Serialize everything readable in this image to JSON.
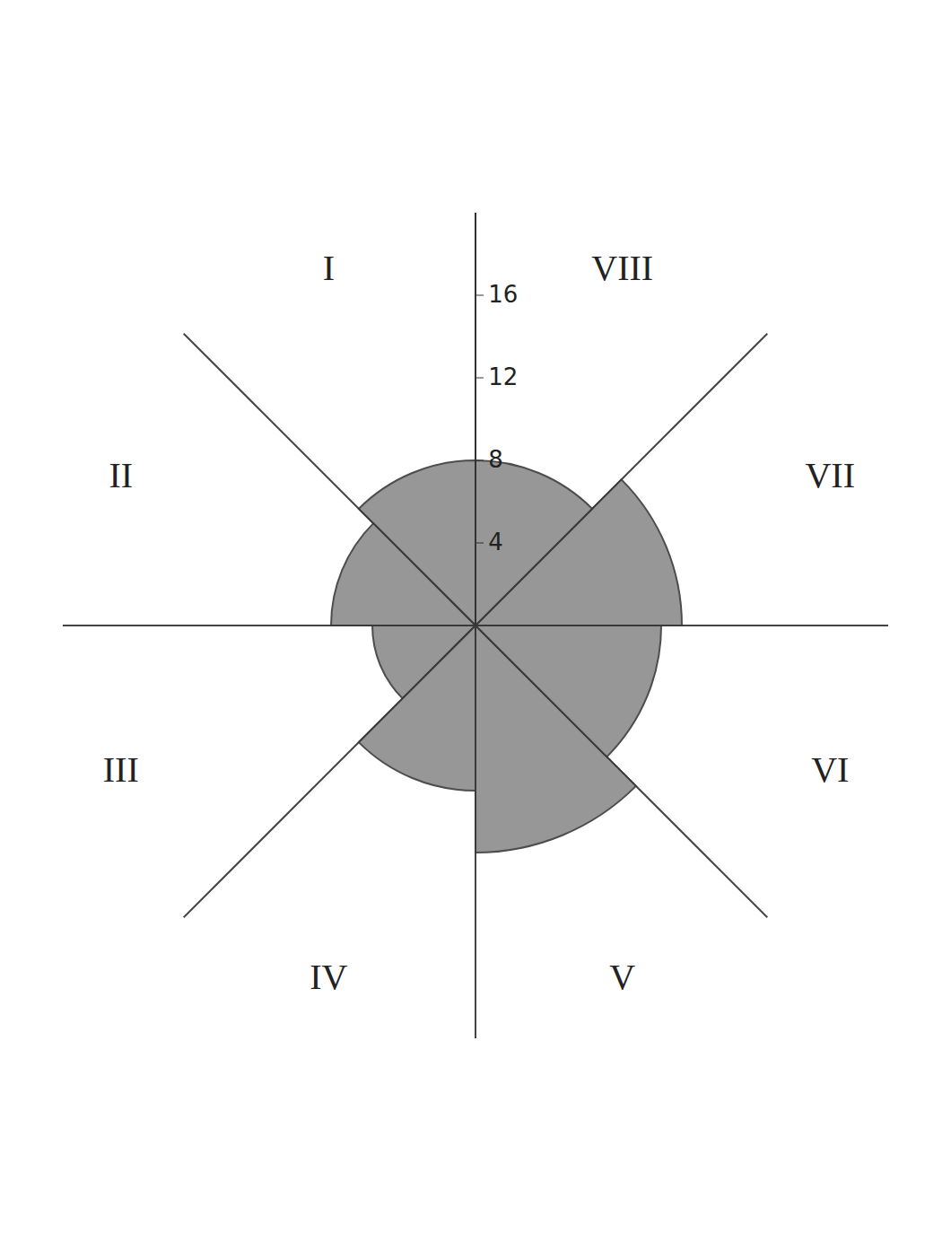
{
  "chart_data": {
    "type": "barpolar",
    "categories": [
      "I",
      "II",
      "III",
      "IV",
      "V",
      "VI",
      "VII",
      "VIII"
    ],
    "values": [
      8,
      7,
      5,
      8,
      11,
      9,
      10,
      8
    ],
    "color": "#8c8c8c",
    "ylim": [
      0,
      20
    ],
    "yticks": [
      4,
      8,
      12,
      16
    ],
    "grid": true
  }
}
